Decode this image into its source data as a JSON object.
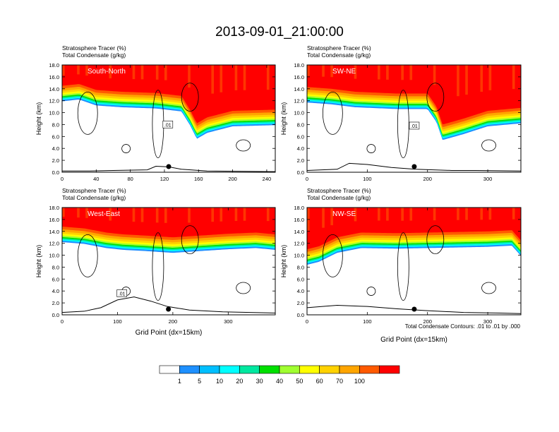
{
  "title": "2013-09-01_21:00:00",
  "colorbar": {
    "colors": [
      "#ffffff",
      "#1e90ff",
      "#00bfff",
      "#00ffff",
      "#00e8a0",
      "#00e000",
      "#a0ff30",
      "#ffff00",
      "#ffd200",
      "#ffa500",
      "#ff5a00",
      "#ff0000"
    ],
    "labels": [
      "1",
      "5",
      "10",
      "20",
      "30",
      "40",
      "50",
      "60",
      "70",
      "100"
    ]
  },
  "contour_note": "Total Condensate Contours: .01 to .01 by .000",
  "panel_header_1": "Stratosphere Tracer   (%)",
  "panel_header_2": "Total Condensate   (g/kg)",
  "ylabel": "Height (km)",
  "xlabel": "Grid Point (dx=15km)",
  "contour_label": ".01",
  "chart_data": [
    {
      "type": "heatmap",
      "name": "South-North",
      "x_ticks": [
        "0",
        "40",
        "80",
        "120",
        "160",
        "200",
        "240"
      ],
      "x_tick_values": [
        0,
        40,
        80,
        120,
        160,
        200,
        240
      ],
      "xlim": [
        0,
        250
      ],
      "y_ticks": [
        "0.0",
        "2.0",
        "4.0",
        "6.0",
        "8.0",
        "10.0",
        "12.0",
        "14.0",
        "16.0",
        "18.0"
      ],
      "ylim": [
        0,
        18
      ],
      "tracer_front_height": [
        [
          0,
          14.5
        ],
        [
          20,
          14.8
        ],
        [
          40,
          13.8
        ],
        [
          70,
          13.5
        ],
        [
          110,
          13.3
        ],
        [
          140,
          12.8
        ],
        [
          150,
          10.5
        ],
        [
          158,
          8.2
        ],
        [
          170,
          9.2
        ],
        [
          200,
          10.3
        ],
        [
          250,
          10.5
        ]
      ],
      "terrain": [
        [
          0,
          0.2
        ],
        [
          30,
          0.2
        ],
        [
          60,
          0.3
        ],
        [
          100,
          0.4
        ],
        [
          110,
          1.0
        ],
        [
          125,
          0.9
        ],
        [
          140,
          0.5
        ],
        [
          170,
          0.2
        ],
        [
          250,
          0.1
        ]
      ],
      "marker_x": 125,
      "contour_label_x": 124,
      "contour_label_y": 12.2
    },
    {
      "type": "heatmap",
      "name": "SW-NE",
      "x_ticks": [
        "0",
        "100",
        "200",
        "300"
      ],
      "x_tick_values": [
        0,
        100,
        200,
        300
      ],
      "xlim": [
        0,
        355
      ],
      "y_ticks": [
        "0.0",
        "2.0",
        "4.0",
        "6.0",
        "8.0",
        "10.0",
        "12.0",
        "14.0",
        "16.0",
        "18.0"
      ],
      "ylim": [
        0,
        18
      ],
      "tracer_front_height": [
        [
          0,
          14.3
        ],
        [
          40,
          14.0
        ],
        [
          80,
          13.5
        ],
        [
          150,
          13.2
        ],
        [
          200,
          13.2
        ],
        [
          215,
          11.0
        ],
        [
          225,
          8.0
        ],
        [
          260,
          9.0
        ],
        [
          300,
          10.3
        ],
        [
          355,
          10.8
        ]
      ],
      "terrain": [
        [
          0,
          0.3
        ],
        [
          50,
          0.5
        ],
        [
          70,
          1.5
        ],
        [
          100,
          1.3
        ],
        [
          140,
          0.8
        ],
        [
          180,
          0.5
        ],
        [
          240,
          0.3
        ],
        [
          280,
          0.3
        ],
        [
          355,
          0.2
        ]
      ],
      "marker_x": 178,
      "contour_label_x": 178,
      "contour_label_y": 12.0
    },
    {
      "type": "heatmap",
      "name": "West-East",
      "x_ticks": [
        "0",
        "100",
        "200",
        "300"
      ],
      "x_tick_values": [
        0,
        100,
        200,
        300
      ],
      "xlim": [
        0,
        385
      ],
      "y_ticks": [
        "0.0",
        "2.0",
        "4.0",
        "6.0",
        "8.0",
        "10.0",
        "12.0",
        "14.0",
        "16.0",
        "18.0"
      ],
      "ylim": [
        0,
        18
      ],
      "tracer_front_height": [
        [
          0,
          14.8
        ],
        [
          40,
          14.5
        ],
        [
          80,
          13.8
        ],
        [
          110,
          13.5
        ],
        [
          150,
          13.3
        ],
        [
          200,
          13.0
        ],
        [
          250,
          13.3
        ],
        [
          300,
          13.6
        ],
        [
          350,
          13.8
        ],
        [
          385,
          13.5
        ]
      ],
      "terrain": [
        [
          0,
          0.4
        ],
        [
          40,
          0.6
        ],
        [
          70,
          1.2
        ],
        [
          100,
          2.5
        ],
        [
          130,
          3.0
        ],
        [
          160,
          2.3
        ],
        [
          190,
          1.4
        ],
        [
          230,
          0.8
        ],
        [
          290,
          0.5
        ],
        [
          385,
          0.3
        ]
      ],
      "marker_x": 192,
      "contour_label_x": 108,
      "contour_label_y": 7.8
    },
    {
      "type": "heatmap",
      "name": "NW-SE",
      "x_ticks": [
        "0",
        "100",
        "200",
        "300"
      ],
      "x_tick_values": [
        0,
        100,
        200,
        300
      ],
      "xlim": [
        0,
        355
      ],
      "y_ticks": [
        "0.0",
        "2.0",
        "4.0",
        "6.0",
        "8.0",
        "10.0",
        "12.0",
        "14.0",
        "16.0",
        "18.0"
      ],
      "ylim": [
        0,
        18
      ],
      "tracer_front_height": [
        [
          0,
          11.0
        ],
        [
          20,
          11.5
        ],
        [
          50,
          13.0
        ],
        [
          90,
          13.8
        ],
        [
          150,
          13.7
        ],
        [
          200,
          13.8
        ],
        [
          250,
          13.9
        ],
        [
          300,
          14.0
        ],
        [
          340,
          14.2
        ],
        [
          355,
          12.5
        ]
      ],
      "terrain": [
        [
          0,
          1.2
        ],
        [
          50,
          1.6
        ],
        [
          100,
          1.4
        ],
        [
          150,
          1.0
        ],
        [
          200,
          0.7
        ],
        [
          260,
          0.4
        ],
        [
          320,
          0.3
        ],
        [
          355,
          0.2
        ]
      ],
      "marker_x": 178
    }
  ]
}
